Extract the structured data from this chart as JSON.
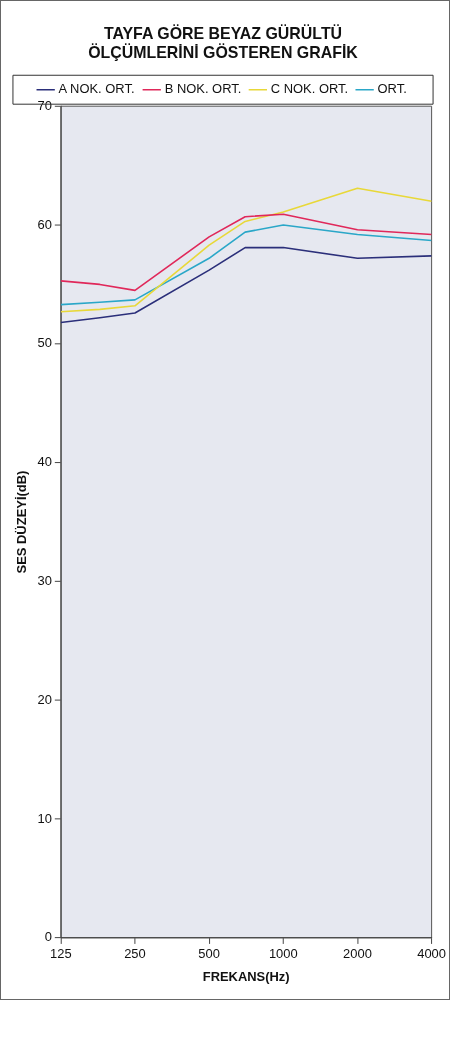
{
  "chart_data": {
    "type": "line",
    "title": "TAYFA GÖRE BEYAZ GÜRÜLTÜ ÖLÇÜMLERİNİ GÖSTEREN GRAFİK",
    "xlabel": "FREKANS(Hz)",
    "ylabel": "SES DÜZEYİ(dB)",
    "x": [
      125,
      180,
      250,
      500,
      700,
      1000,
      2000,
      4000
    ],
    "series": [
      {
        "name": "A NOK. ORT.",
        "color": "#2b2f7a",
        "values": [
          51.8,
          52.2,
          52.6,
          56.2,
          58.1,
          58.1,
          57.2,
          57.4
        ]
      },
      {
        "name": "B NOK. ORT.",
        "color": "#e0285a",
        "values": [
          55.3,
          55.0,
          54.5,
          59.0,
          60.7,
          60.9,
          59.6,
          59.2
        ]
      },
      {
        "name": "C NOK. ORT.",
        "color": "#e8d838",
        "values": [
          52.7,
          52.9,
          53.2,
          58.3,
          60.3,
          61.1,
          63.1,
          62.0
        ]
      },
      {
        "name": "ORT.",
        "color": "#2aa7c8",
        "values": [
          53.3,
          53.5,
          53.7,
          57.2,
          59.4,
          60.0,
          59.2,
          58.7
        ]
      }
    ],
    "log": "x",
    "xlim": [
      125,
      4000
    ],
    "xticks": [
      125,
      250,
      500,
      1000,
      2000,
      4000
    ],
    "ylim": [
      0,
      70
    ],
    "yticks": [
      0,
      10,
      20,
      30,
      40,
      50,
      60,
      70
    ],
    "grid": false,
    "legend": "top",
    "marker": "none",
    "line_style": "solid"
  }
}
